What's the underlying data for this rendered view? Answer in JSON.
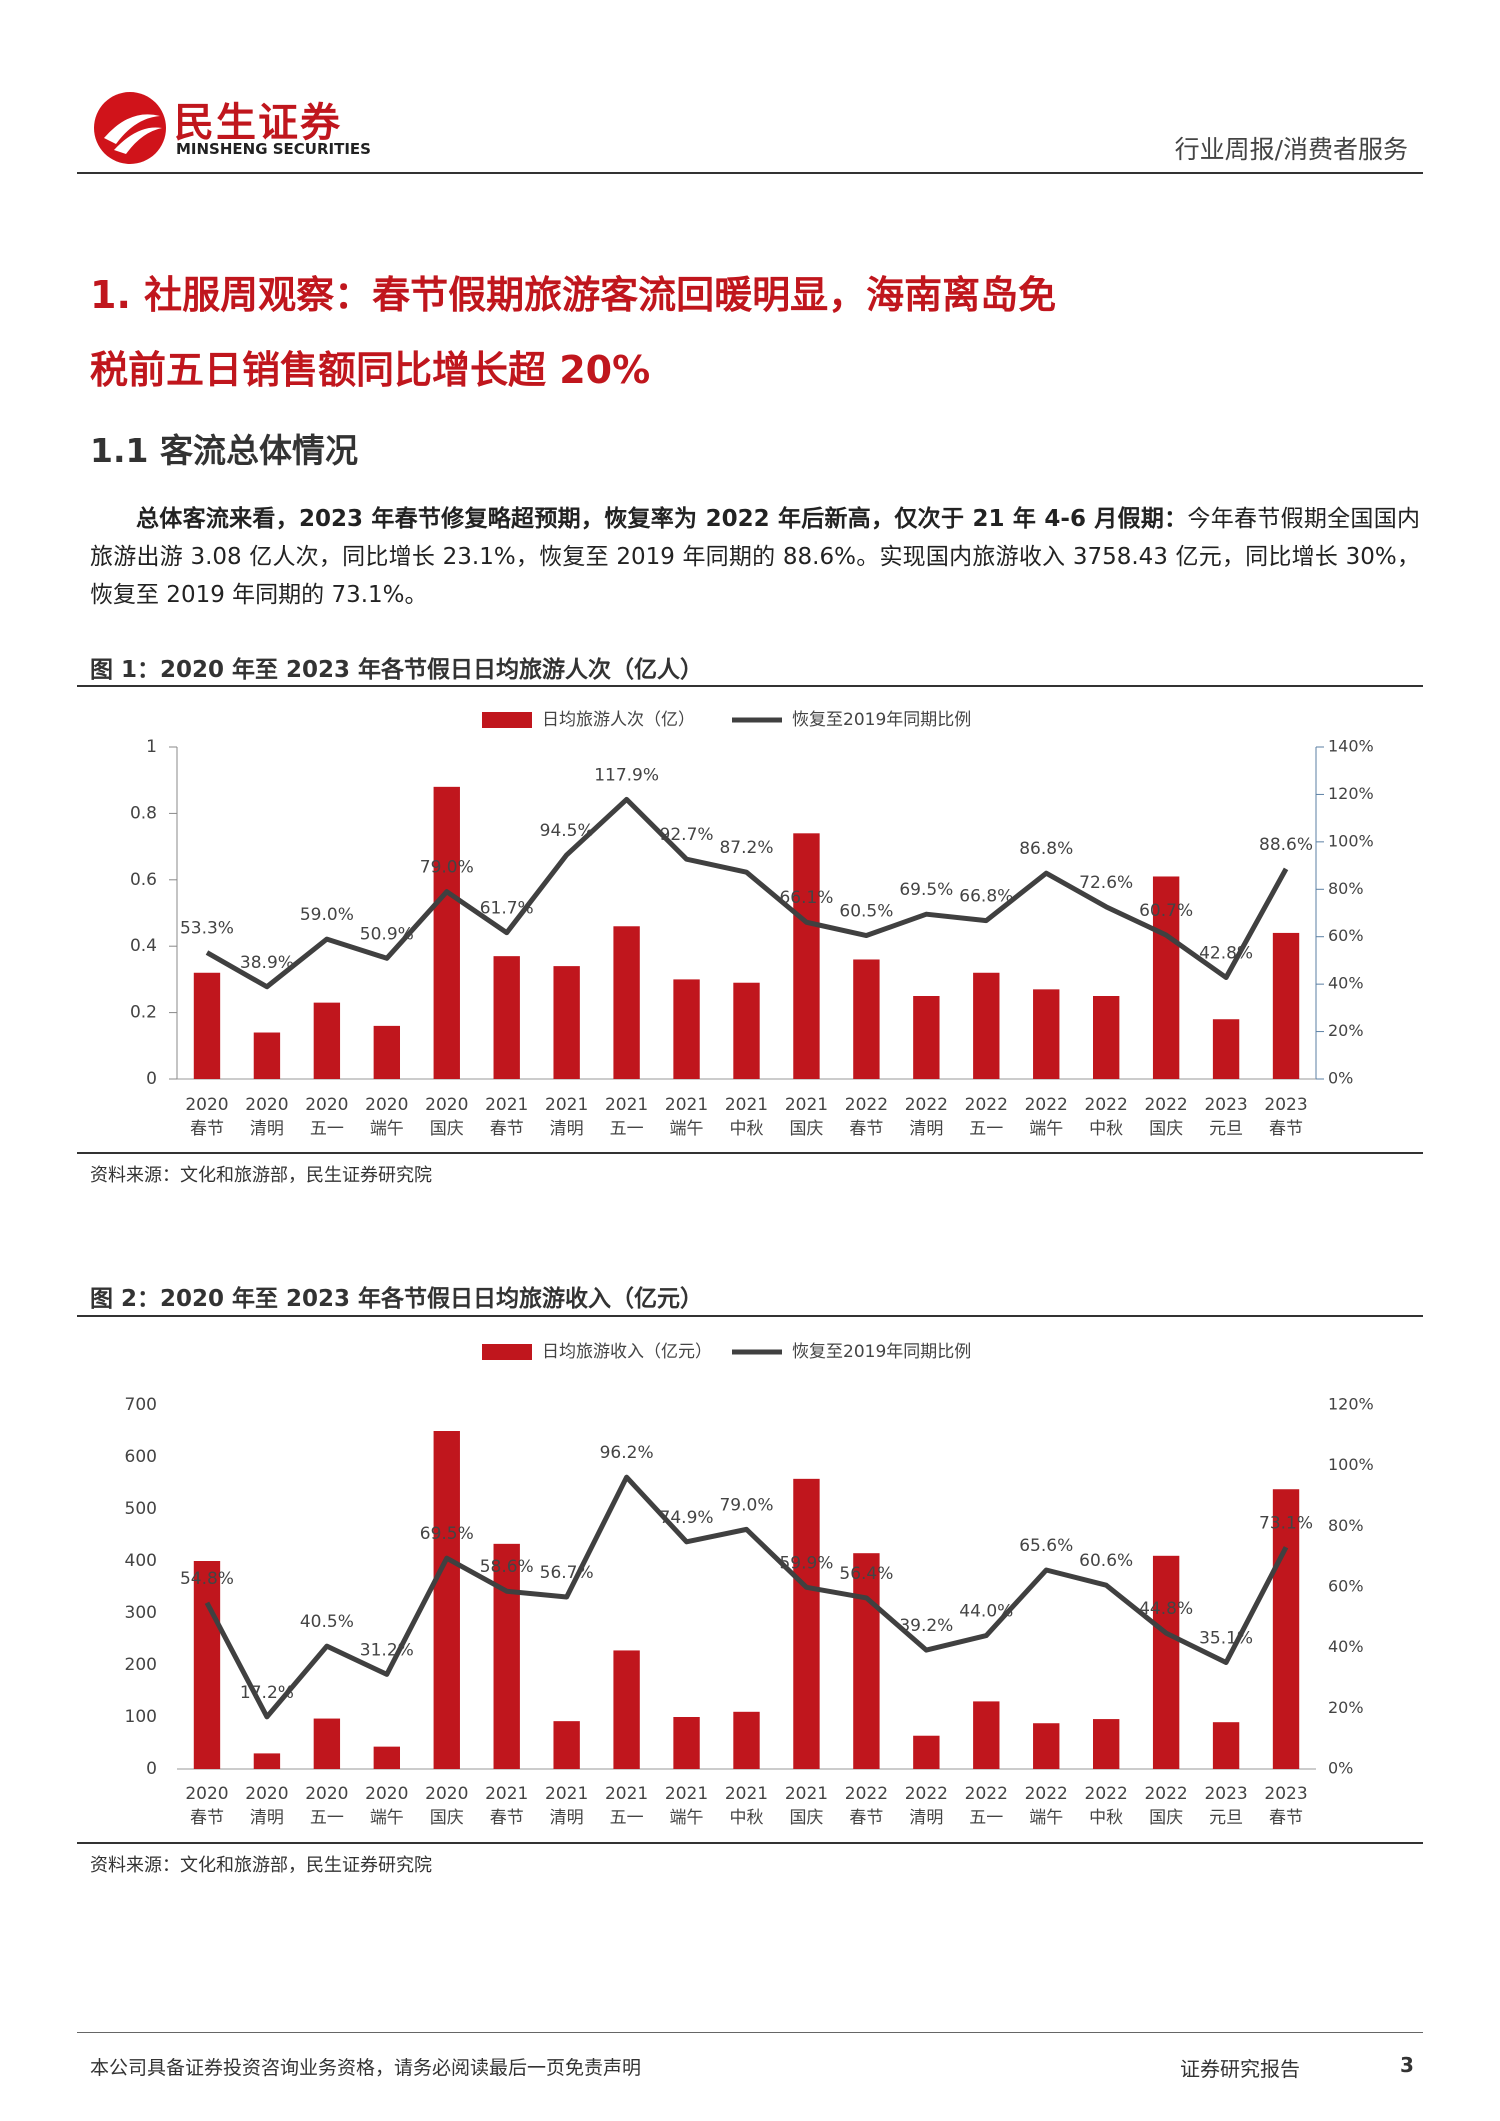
{
  "header": {
    "logo_cn": "民生证券",
    "logo_en": "MINSHENG SECURITIES",
    "category": "行业周报/消费者服务"
  },
  "title": {
    "line1": "1. 社服周观察：春节假期旅游客流回暖明显，海南离岛免",
    "line2": "税前五日销售额同比增长超 20%"
  },
  "section": "1.1 客流总体情况",
  "body": {
    "bold": "总体客流来看，2023 年春节修复略超预期，恢复率为 2022 年后新高，仅次于 21 年 4-6 月假期：",
    "text": "今年春节假期全国国内旅游出游 3.08 亿人次，同比增长 23.1%，恢复至 2019 年同期的 88.6%。实现国内旅游收入 3758.43 亿元，同比增长 30%，恢复至 2019 年同期的 73.1%。"
  },
  "chart_data": [
    {
      "type": "bar-line",
      "title": "图 1：2020 年至 2023 年各节假日日均旅游人次（亿人）",
      "source": "资料来源：文化和旅游部，民生证券研究院",
      "categories": [
        [
          "2020",
          "春节"
        ],
        [
          "2020",
          "清明"
        ],
        [
          "2020",
          "五一"
        ],
        [
          "2020",
          "端午"
        ],
        [
          "2020",
          "国庆"
        ],
        [
          "2021",
          "春节"
        ],
        [
          "2021",
          "清明"
        ],
        [
          "2021",
          "五一"
        ],
        [
          "2021",
          "端午"
        ],
        [
          "2021",
          "中秋"
        ],
        [
          "2021",
          "国庆"
        ],
        [
          "2022",
          "春节"
        ],
        [
          "2022",
          "清明"
        ],
        [
          "2022",
          "五一"
        ],
        [
          "2022",
          "端午"
        ],
        [
          "2022",
          "中秋"
        ],
        [
          "2022",
          "国庆"
        ],
        [
          "2023",
          "元旦"
        ],
        [
          "2023",
          "春节"
        ]
      ],
      "series": [
        {
          "name": "日均旅游人次（亿）",
          "color": "#c0161d",
          "values": [
            0.32,
            0.14,
            0.23,
            0.16,
            0.88,
            0.37,
            0.34,
            0.46,
            0.3,
            0.29,
            0.74,
            0.36,
            0.25,
            0.32,
            0.27,
            0.25,
            0.61,
            0.18,
            0.44
          ]
        },
        {
          "name": "恢复至2019年同期比例",
          "color": "#404040",
          "axis": "y2",
          "values": [
            53.3,
            38.9,
            59.0,
            50.9,
            79.0,
            61.7,
            94.5,
            117.9,
            92.7,
            87.2,
            66.1,
            60.5,
            69.5,
            66.8,
            86.8,
            72.6,
            60.7,
            42.8,
            88.6
          ],
          "value_labels": [
            "53.3%",
            "38.9%",
            "59.0%",
            "50.9%",
            "79.0%",
            "61.7%",
            "94.5%",
            "117.9%",
            "92.7%",
            "87.2%",
            "66.1%",
            "60.5%",
            "69.5%",
            "66.8%",
            "86.8%",
            "72.6%",
            "60.7%",
            "42.8%",
            "88.6%"
          ]
        }
      ],
      "ylim": [
        0,
        1
      ],
      "yticks": [
        0,
        0.2,
        0.4,
        0.6,
        0.8,
        1
      ],
      "y2lim": [
        0,
        140
      ],
      "y2ticks": [
        {
          "value": 0,
          "label": "0%"
        },
        {
          "value": 20,
          "label": "20%"
        },
        {
          "value": 40,
          "label": "40%"
        },
        {
          "value": 60,
          "label": "60%"
        },
        {
          "value": 80,
          "label": "80%"
        },
        {
          "value": 100,
          "label": "100%"
        },
        {
          "value": 120,
          "label": "120%"
        },
        {
          "value": 140,
          "label": "140%"
        }
      ]
    },
    {
      "type": "bar-line",
      "title": "图 2：2020 年至 2023 年各节假日日均旅游收入（亿元）",
      "source": "资料来源：文化和旅游部，民生证券研究院",
      "categories": [
        [
          "2020",
          "春节"
        ],
        [
          "2020",
          "清明"
        ],
        [
          "2020",
          "五一"
        ],
        [
          "2020",
          "端午"
        ],
        [
          "2020",
          "国庆"
        ],
        [
          "2021",
          "春节"
        ],
        [
          "2021",
          "清明"
        ],
        [
          "2021",
          "五一"
        ],
        [
          "2021",
          "端午"
        ],
        [
          "2021",
          "中秋"
        ],
        [
          "2021",
          "国庆"
        ],
        [
          "2022",
          "春节"
        ],
        [
          "2022",
          "清明"
        ],
        [
          "2022",
          "五一"
        ],
        [
          "2022",
          "端午"
        ],
        [
          "2022",
          "中秋"
        ],
        [
          "2022",
          "国庆"
        ],
        [
          "2023",
          "元旦"
        ],
        [
          "2023",
          "春节"
        ]
      ],
      "series": [
        {
          "name": "日均旅游收入（亿元）",
          "color": "#c0161d",
          "values": [
            400,
            30,
            97,
            43,
            650,
            433,
            92,
            228,
            100,
            110,
            558,
            415,
            64,
            130,
            88,
            96,
            410,
            90,
            538
          ]
        },
        {
          "name": "恢复至2019年同期比例",
          "color": "#404040",
          "axis": "y2",
          "values": [
            54.8,
            17.2,
            40.5,
            31.2,
            69.5,
            58.6,
            56.7,
            96.2,
            74.9,
            79.0,
            59.9,
            56.4,
            39.2,
            44.0,
            65.6,
            60.6,
            44.8,
            35.1,
            73.1
          ],
          "value_labels": [
            "54.8%",
            "17.2%",
            "40.5%",
            "31.2%",
            "69.5%",
            "58.6%",
            "56.7%",
            "96.2%",
            "74.9%",
            "79.0%",
            "59.9%",
            "56.4%",
            "39.2%",
            "44.0%",
            "65.6%",
            "60.6%",
            "44.8%",
            "35.1%",
            "73.1%"
          ]
        }
      ],
      "ylim": [
        0,
        700
      ],
      "yticks": [
        0,
        100,
        200,
        300,
        400,
        500,
        600,
        700
      ],
      "y2lim": [
        0,
        120
      ],
      "y2ticks": [
        {
          "value": 0,
          "label": "0%"
        },
        {
          "value": 20,
          "label": "20%"
        },
        {
          "value": 40,
          "label": "40%"
        },
        {
          "value": 60,
          "label": "60%"
        },
        {
          "value": 80,
          "label": "80%"
        },
        {
          "value": 100,
          "label": "100%"
        },
        {
          "value": 120,
          "label": "120%"
        }
      ]
    }
  ],
  "footer": {
    "disclaimer": "本公司具备证券投资咨询业务资格，请务必阅读最后一页免责声明",
    "type": "证券研究报告",
    "page": "3"
  }
}
